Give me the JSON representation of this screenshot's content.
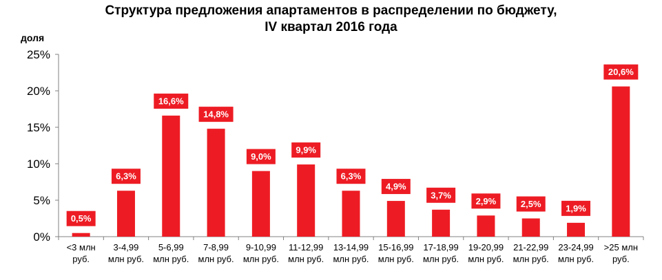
{
  "chart_data": {
    "type": "bar",
    "title": [
      "Структура  предложения апартаментов в распределении по бюджету,",
      "IV квартал 2016 года"
    ],
    "ylabel": "доля",
    "ylim": [
      0,
      25
    ],
    "yticks": [
      "0%",
      "5%",
      "10%",
      "15%",
      "20%",
      "25%"
    ],
    "grid": false,
    "bar_color": "#ED1C24",
    "categories": [
      [
        "<3 млн",
        "руб."
      ],
      [
        "3-4,99",
        "млн руб."
      ],
      [
        "5-6,99",
        "млн руб."
      ],
      [
        "7-8,99",
        "млн руб."
      ],
      [
        "9-10,99",
        "млн руб."
      ],
      [
        "11-12,99",
        "млн руб."
      ],
      [
        "13-14,99",
        "млн руб."
      ],
      [
        "15-16,99",
        "млн руб."
      ],
      [
        "17-18,99",
        "млн руб."
      ],
      [
        "19-20,99",
        "млн руб."
      ],
      [
        "21-22,99",
        "млн руб."
      ],
      [
        "23-24,99",
        "млн руб."
      ],
      [
        ">25 млн",
        "руб."
      ]
    ],
    "values": [
      0.5,
      6.3,
      16.6,
      14.8,
      9.0,
      9.9,
      6.3,
      4.9,
      3.7,
      2.9,
      2.5,
      1.9,
      20.6
    ],
    "data_labels": [
      "0,5%",
      "6,3%",
      "16,6%",
      "14,8%",
      "9,0%",
      "9,9%",
      "6,3%",
      "4,9%",
      "3,7%",
      "2,9%",
      "2,5%",
      "1,9%",
      "20,6%"
    ]
  }
}
